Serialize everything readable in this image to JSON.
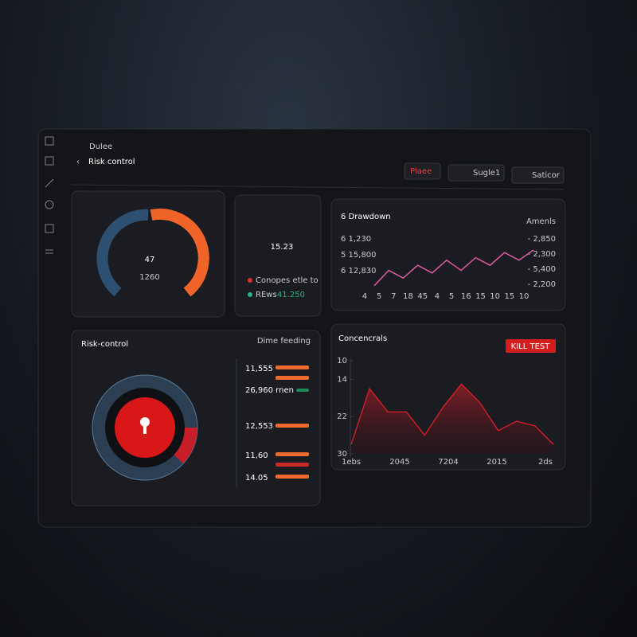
{
  "header": {
    "crumb": "Dulee",
    "title": "Risk control",
    "buttons": [
      "Plaee",
      "Sugle1",
      "Saticor"
    ]
  },
  "gauge": {
    "value": "47",
    "sub": "1260"
  },
  "stat": {
    "value": "15.23",
    "legend": [
      "Conopes etle to",
      "REws"
    ],
    "legend_value": "41.250"
  },
  "drawdown": {
    "type": "line",
    "title": "6 Drawdown",
    "right_title": "Amenls",
    "left_labels": [
      "6 1,230",
      "5 15,800",
      "6 12,830"
    ],
    "right_labels": [
      "- 2,850",
      "- 2,300",
      "- 5,400",
      "- 2,200"
    ],
    "categories": [
      "4",
      "5",
      "7",
      "18",
      "45",
      "4",
      "5",
      "16",
      "15",
      "10",
      "15",
      "10"
    ],
    "values": [
      5,
      35,
      20,
      45,
      30,
      55,
      35,
      60,
      45,
      70,
      55,
      75
    ],
    "ylim": [
      0,
      100
    ],
    "color": "#e05aa0"
  },
  "risk": {
    "title": "Risk-control",
    "subtitle": "Dime feeding",
    "items": [
      "11,555",
      "26,960 rnen",
      "12,553",
      "11,60",
      "14.05"
    ]
  },
  "area": {
    "type": "area",
    "title": "Concencrals",
    "button": "KILL TEST",
    "categories": [
      "1ebs",
      "2045",
      "7204",
      "2015",
      "2ds"
    ],
    "values": [
      28,
      16,
      21,
      21,
      26,
      20,
      15,
      19,
      25,
      23,
      24,
      28
    ],
    "ylim": [
      30,
      10
    ],
    "yticks": [
      10,
      14,
      22,
      30
    ],
    "color": "#c81e28"
  }
}
